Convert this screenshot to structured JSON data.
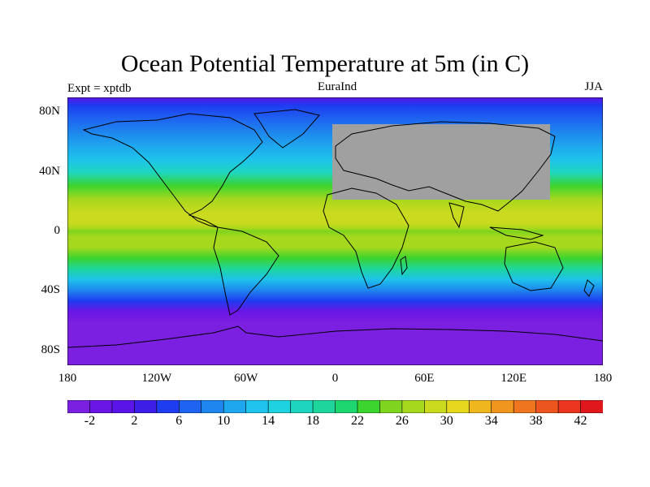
{
  "title": "Ocean Potential Temperature at 5m (in C)",
  "subtitle_left": "Expt = xptdb",
  "subtitle_center": "EuraInd",
  "subtitle_right": "JJA",
  "lat_ticks": [
    "80N",
    "40N",
    "0",
    "40S",
    "80S"
  ],
  "lon_ticks": [
    "180",
    "120W",
    "60W",
    "0",
    "60E",
    "120E",
    "180"
  ],
  "colorbar": {
    "labels": [
      "-2",
      "2",
      "6",
      "10",
      "14",
      "18",
      "22",
      "26",
      "30",
      "34",
      "38",
      "42"
    ],
    "colors": [
      "#7b1fe0",
      "#6a16e6",
      "#5a14e8",
      "#3c1ee6",
      "#1e3cf0",
      "#1e64f0",
      "#1e86ee",
      "#1ea6ee",
      "#1ec2ec",
      "#1ed2e0",
      "#1ed6c0",
      "#1ed69c",
      "#1ed670",
      "#3cd42e",
      "#7ed41e",
      "#a6d81e",
      "#cada1e",
      "#e6d81e",
      "#f0b61e",
      "#f0961e",
      "#ee761e",
      "#ec561e",
      "#ea361e",
      "#e0181e"
    ]
  },
  "map": {
    "masked_region_color": "#a0a0a0",
    "polar_color": "#7b1fe0",
    "coast_color": "#000000"
  }
}
